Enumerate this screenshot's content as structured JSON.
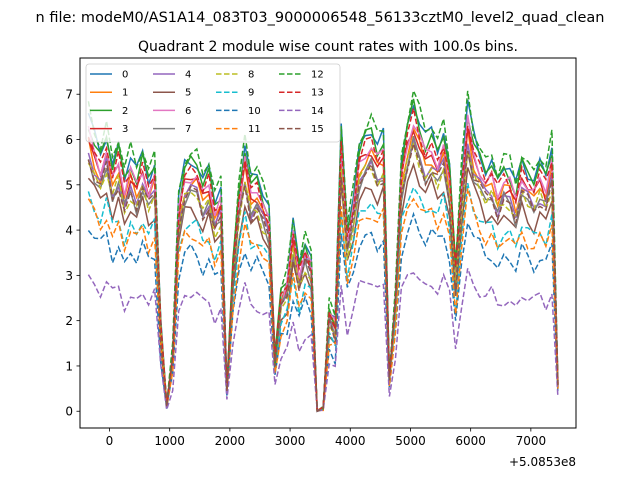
{
  "figure": {
    "suptitle": "n file: modeM0/AS1A14_083T03_9000006548_56133cztM0_level2_quad_clean"
  },
  "chart_data": {
    "type": "line",
    "title": "Quadrant 2 module wise count rates with 100.0s bins.",
    "xlabel": "",
    "ylabel": "",
    "x_offset_label": "+5.0853e8",
    "xlim": [
      -490,
      7750
    ],
    "ylim": [
      -0.37,
      7.8
    ],
    "x_ticks": [
      0,
      1000,
      2000,
      3000,
      4000,
      5000,
      6000,
      7000
    ],
    "x_tick_labels": [
      "0",
      "1000",
      "2000",
      "3000",
      "4000",
      "5000",
      "6000",
      "7000"
    ],
    "y_ticks": [
      0,
      1,
      2,
      3,
      4,
      5,
      6,
      7
    ],
    "y_tick_labels": [
      "0",
      "1",
      "2",
      "3",
      "4",
      "5",
      "6",
      "7"
    ],
    "grid": false,
    "legend": {
      "placement": "upper-left",
      "columns": 4
    },
    "x": [
      -350,
      -250,
      -150,
      -50,
      50,
      150,
      250,
      350,
      450,
      550,
      650,
      750,
      850,
      950,
      1050,
      1150,
      1250,
      1350,
      1450,
      1550,
      1650,
      1750,
      1850,
      1950,
      2050,
      2150,
      2250,
      2350,
      2450,
      2550,
      2650,
      2750,
      2850,
      2950,
      3050,
      3150,
      3250,
      3350,
      3450,
      3550,
      3650,
      3750,
      3850,
      3950,
      4050,
      4150,
      4250,
      4350,
      4450,
      4550,
      4650,
      4750,
      4850,
      4950,
      5050,
      5150,
      5250,
      5350,
      5450,
      5550,
      5650,
      5750,
      5850,
      5950,
      6050,
      6150,
      6250,
      6350,
      6450,
      6550,
      6650,
      6750,
      6850,
      6950,
      7050,
      7150,
      7250,
      7350,
      7450
    ],
    "series": [
      {
        "name": "0",
        "color": "#1f77b4",
        "dash": "solid"
      },
      {
        "name": "1",
        "color": "#ff7f0e",
        "dash": "solid"
      },
      {
        "name": "2",
        "color": "#2ca02c",
        "dash": "solid"
      },
      {
        "name": "3",
        "color": "#d62728",
        "dash": "solid"
      },
      {
        "name": "4",
        "color": "#9467bd",
        "dash": "solid"
      },
      {
        "name": "5",
        "color": "#8c564b",
        "dash": "solid"
      },
      {
        "name": "6",
        "color": "#e377c2",
        "dash": "solid"
      },
      {
        "name": "7",
        "color": "#7f7f7f",
        "dash": "solid"
      },
      {
        "name": "8",
        "color": "#bcbd22",
        "dash": "dashed"
      },
      {
        "name": "9",
        "color": "#17becf",
        "dash": "dashed"
      },
      {
        "name": "10",
        "color": "#1f77b4",
        "dash": "dashed"
      },
      {
        "name": "11",
        "color": "#ff7f0e",
        "dash": "dashed"
      },
      {
        "name": "12",
        "color": "#2ca02c",
        "dash": "dashed"
      },
      {
        "name": "13",
        "color": "#d62728",
        "dash": "dashed"
      },
      {
        "name": "14",
        "color": "#9467bd",
        "dash": "dashed"
      },
      {
        "name": "15",
        "color": "#8c564b",
        "dash": "dashed"
      }
    ],
    "profile": [
      1.0,
      0.93,
      0.88,
      0.95,
      0.84,
      0.9,
      0.79,
      0.86,
      0.81,
      0.88,
      0.8,
      0.85,
      0.3,
      0.02,
      0.2,
      0.72,
      0.84,
      0.86,
      0.85,
      0.78,
      0.82,
      0.71,
      0.76,
      0.08,
      0.5,
      0.75,
      0.9,
      0.78,
      0.8,
      0.74,
      0.69,
      0.18,
      0.4,
      0.45,
      0.63,
      0.49,
      0.58,
      0.53,
      0.0,
      0.01,
      0.35,
      0.3,
      0.95,
      0.62,
      0.74,
      0.9,
      0.94,
      0.96,
      0.9,
      0.93,
      0.12,
      0.4,
      0.85,
      0.97,
      1.05,
      0.98,
      0.92,
      0.95,
      0.9,
      0.96,
      0.83,
      0.48,
      0.8,
      1.04,
      0.93,
      0.88,
      0.83,
      0.85,
      0.78,
      0.83,
      0.82,
      0.76,
      0.86,
      0.82,
      0.79,
      0.84,
      0.8,
      0.9,
      0.1
    ],
    "levels": [
      6.5,
      5.9,
      6.4,
      6.0,
      5.7,
      5.2,
      6.1,
      5.6,
      5.6,
      4.8,
      4.1,
      4.6,
      6.7,
      6.2,
      3.0,
      5.6
    ]
  }
}
